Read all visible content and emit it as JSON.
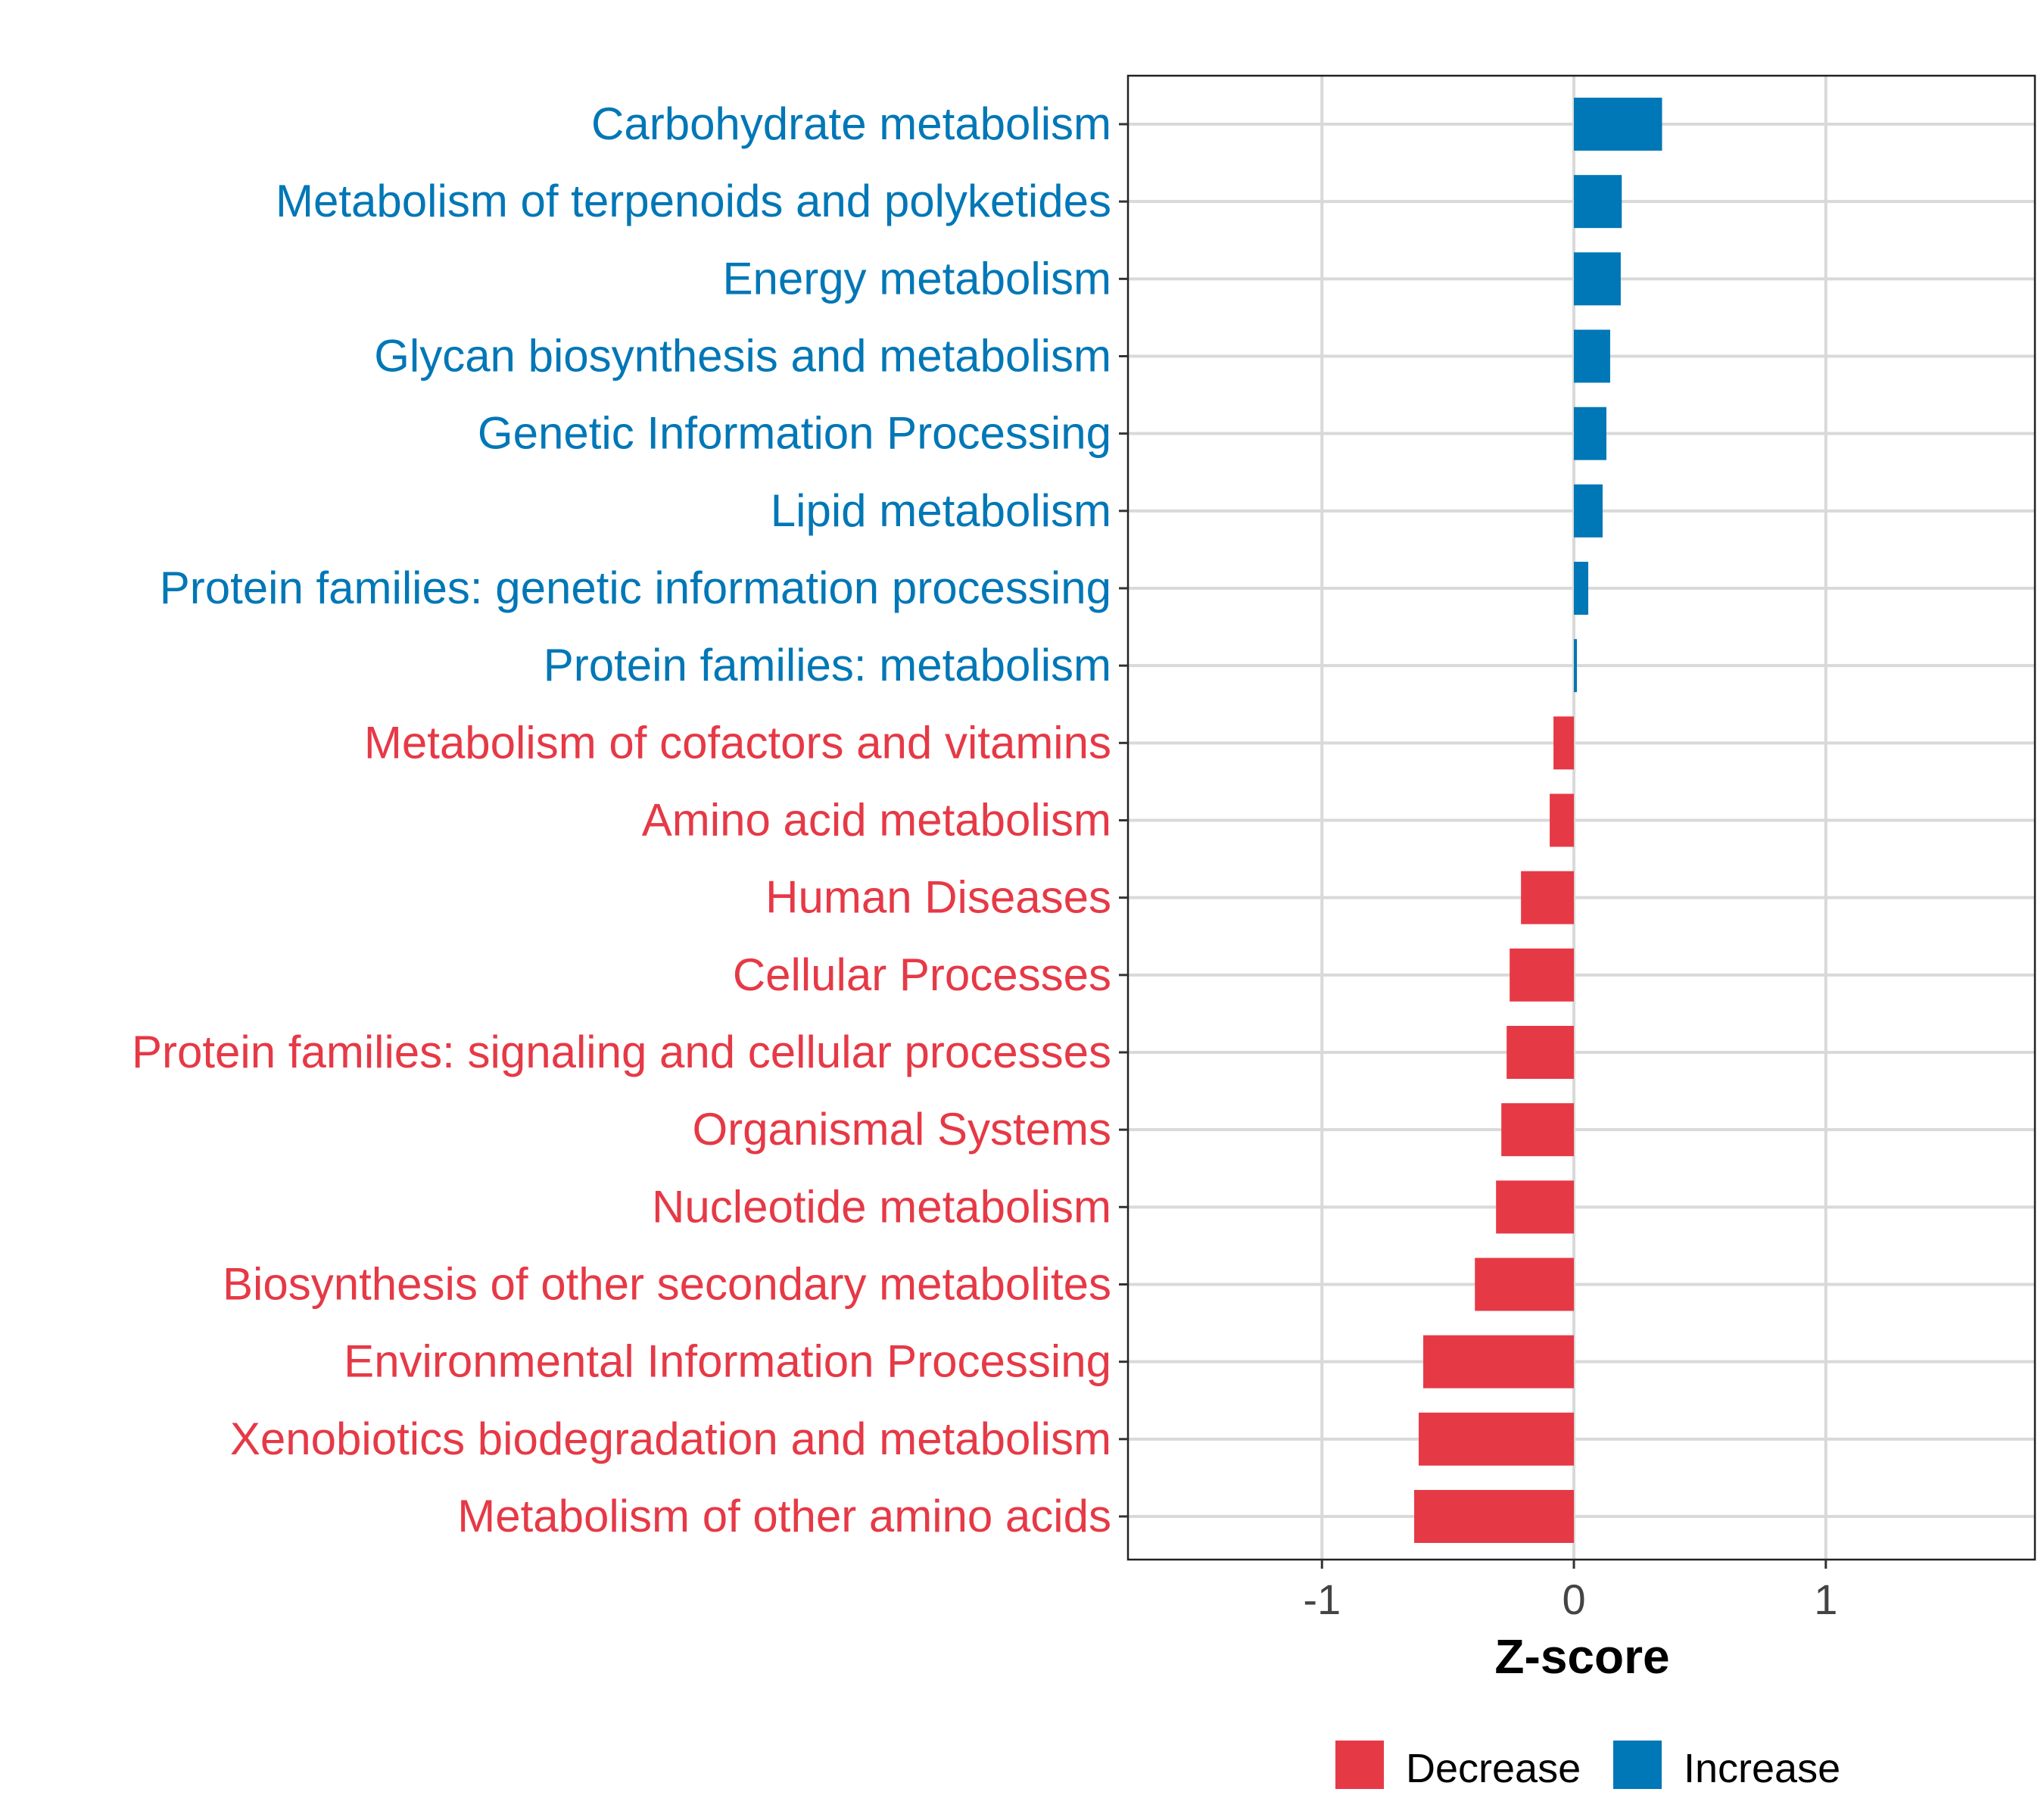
{
  "chart_data": {
    "type": "bar",
    "orientation": "horizontal",
    "title": "",
    "xlabel": "Z-score",
    "ylabel": "",
    "xlim": [
      -1.77,
      1.83
    ],
    "xticks": [
      -1,
      0,
      1
    ],
    "xtick_labels": [
      "-1",
      "0",
      "1"
    ],
    "grid": true,
    "legend_position": "bottom",
    "legend": [
      {
        "name": "Decrease",
        "color": "#E63946"
      },
      {
        "name": "Increase",
        "color": "#0077B6"
      }
    ],
    "categories": [
      "Carbohydrate metabolism",
      "Metabolism of terpenoids and polyketides",
      "Energy metabolism",
      "Glycan biosynthesis and metabolism",
      "Genetic Information Processing",
      "Lipid metabolism",
      "Protein families: genetic information processing",
      "Protein families: metabolism",
      "Metabolism of cofactors and vitamins",
      "Amino acid metabolism",
      "Human Diseases",
      "Cellular Processes",
      "Protein families: signaling and cellular processes",
      "Organismal Systems",
      "Nucleotide metabolism",
      "Biosynthesis of other secondary metabolites",
      "Environmental Information Processing",
      "Xenobiotics biodegradation and metabolism",
      "Metabolism of other amino acids"
    ],
    "values": [
      0.35,
      0.19,
      0.186,
      0.144,
      0.129,
      0.114,
      0.057,
      0.012,
      -0.081,
      -0.096,
      -0.21,
      -0.255,
      -0.267,
      -0.288,
      -0.309,
      -0.393,
      -0.598,
      -0.616,
      -0.634
    ]
  }
}
